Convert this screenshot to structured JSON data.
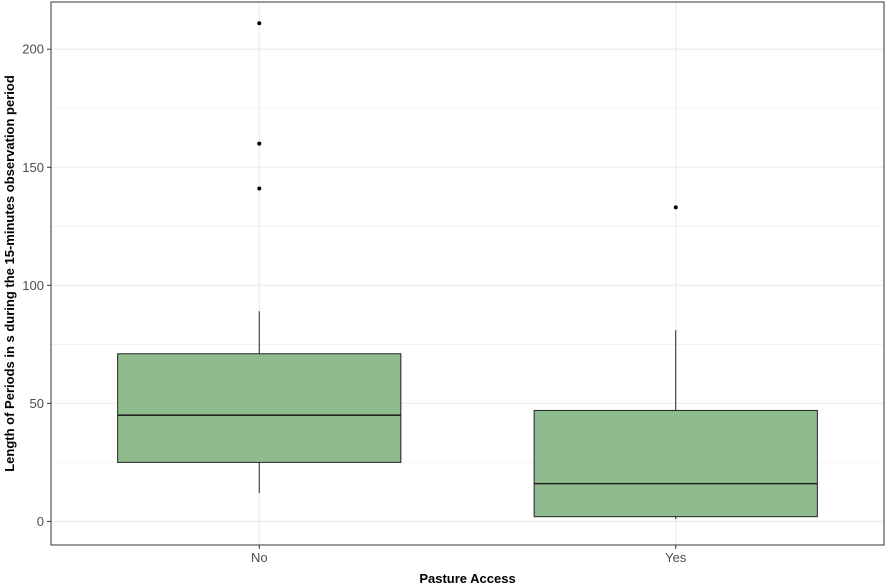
{
  "chart_data": {
    "type": "box",
    "title": "",
    "xlabel": "Pasture Access",
    "ylabel": "Length of Periods in s during the 15-minutes observation period",
    "categories": [
      "No",
      "Yes"
    ],
    "boxes": [
      {
        "category": "No",
        "whisker_low": 12,
        "q1": 25,
        "median": 45,
        "q3": 71,
        "whisker_high": 89,
        "outliers": [
          141,
          160,
          211
        ]
      },
      {
        "category": "Yes",
        "whisker_low": 1,
        "q1": 2,
        "median": 16,
        "q3": 47,
        "whisker_high": 81,
        "outliers": [
          133
        ]
      }
    ],
    "ylim": [
      -10,
      220
    ],
    "yticks": [
      0,
      50,
      100,
      150,
      200
    ],
    "grid": true,
    "legend": "none",
    "colors": {
      "box_fill": "#8fbc8f",
      "box_stroke": "#222222",
      "grid": "#ebebeb",
      "panel_border": "#333333"
    }
  }
}
